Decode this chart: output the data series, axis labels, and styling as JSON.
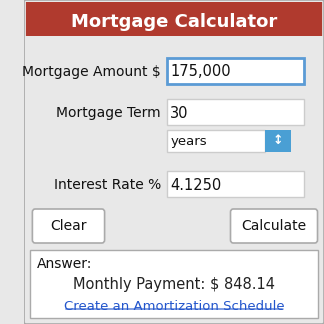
{
  "title": "Mortgage Calculator",
  "title_bg": "#b03a2e",
  "title_color": "#ffffff",
  "bg_color": "#e8e8e8",
  "answer_bg": "#ffffff",
  "field_bg": "#ffffff",
  "field_border_default": "#cccccc",
  "field_border_active": "#5b9bd5",
  "label1": "Mortgage Amount $",
  "value1": "175,000",
  "label2": "Mortgage Term",
  "value2": "30",
  "dropdown_label": "years",
  "dropdown_bg": "#4a9fd4",
  "label3": "Interest Rate %",
  "value3": "4.1250",
  "btn_clear": "Clear",
  "btn_calculate": "Calculate",
  "btn_bg": "#ffffff",
  "btn_border": "#aaaaaa",
  "answer_label": "Answer:",
  "monthly_payment": "Monthly Payment: $ 848.14",
  "amort_link": "Create an Amortization Schedule",
  "link_color": "#2255cc",
  "outer_border": "#aaaaaa",
  "figsize": [
    3.24,
    3.24
  ],
  "dpi": 100
}
